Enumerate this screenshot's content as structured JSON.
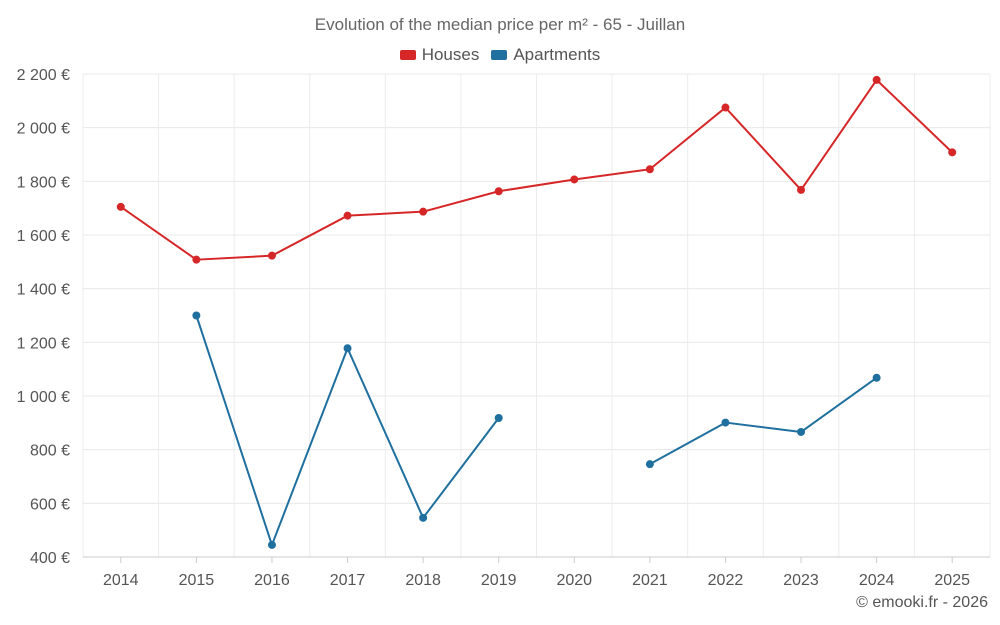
{
  "chart_data": {
    "type": "line",
    "title": "Evolution of the median price per m² - 65 - Juillan",
    "categories": [
      "2014",
      "2015",
      "2016",
      "2017",
      "2018",
      "2019",
      "2020",
      "2021",
      "2022",
      "2023",
      "2024",
      "2025"
    ],
    "ylim": [
      400,
      2200
    ],
    "yticks": [
      400,
      600,
      800,
      1000,
      1200,
      1400,
      1600,
      1800,
      2000,
      2200
    ],
    "ytick_labels": [
      "400 €",
      "600 €",
      "800 €",
      "1 000 €",
      "1 200 €",
      "1 400 €",
      "1 600 €",
      "1 800 €",
      "2 000 €",
      "2 200 €"
    ],
    "grid": true,
    "legend_position": "top-center",
    "series": [
      {
        "name": "Houses",
        "color": "#d62728",
        "values": [
          1705,
          1508,
          1523,
          1672,
          1687,
          1763,
          1807,
          1845,
          2075,
          1768,
          2178,
          1908
        ]
      },
      {
        "name": "Apartments",
        "color": "#1f6f9f",
        "values": [
          null,
          1300,
          445,
          1178,
          546,
          918,
          null,
          746,
          901,
          866,
          1068,
          null
        ]
      }
    ]
  },
  "credit": "© emooki.fr - 2026"
}
